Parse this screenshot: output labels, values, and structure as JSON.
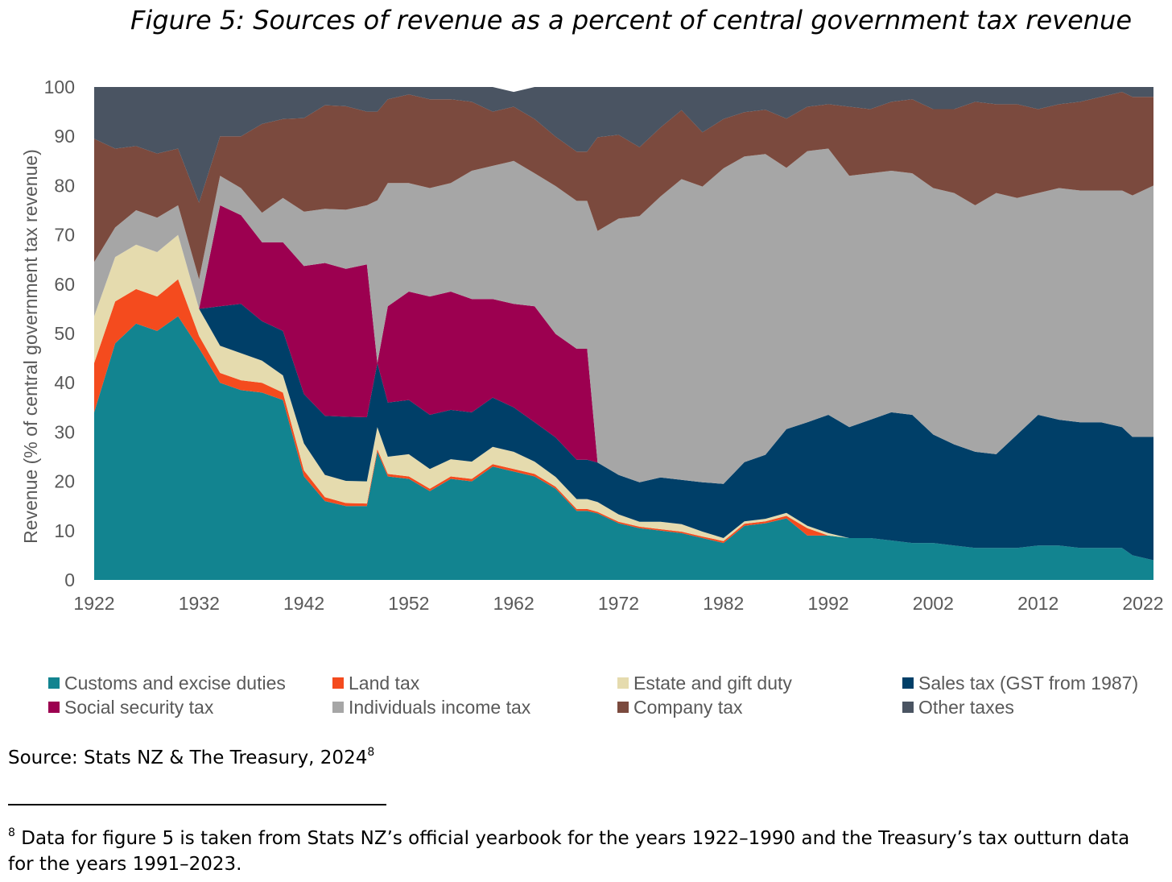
{
  "title": "Figure 5: Sources of revenue as a percent of central government tax revenue",
  "source": {
    "text": "Source: Stats NZ & The Treasury, 2024",
    "note_marker": "8"
  },
  "footnote": {
    "marker": "8",
    "text": " Data for figure 5 is taken from Stats NZ’s official yearbook for the years 1922–1990 and the Treasury’s tax outturn data for the years 1991–2023."
  },
  "chart_data": {
    "type": "area",
    "stacked": true,
    "title": "Figure 5: Sources of revenue as a percent of central government tax revenue",
    "xlabel": "",
    "ylabel": "Revenue (% of central government tax revenue)",
    "xlim": [
      1922,
      2023
    ],
    "ylim": [
      0,
      100
    ],
    "y_ticks": [
      0,
      10,
      20,
      30,
      40,
      50,
      60,
      70,
      80,
      90,
      100
    ],
    "x_ticks": [
      1922,
      1932,
      1942,
      1952,
      1962,
      1972,
      1982,
      1992,
      2002,
      2012,
      2022
    ],
    "grid": false,
    "legend_position": "bottom",
    "x": [
      1922,
      1924,
      1926,
      1928,
      1930,
      1932,
      1934,
      1936,
      1938,
      1940,
      1942,
      1944,
      1946,
      1948,
      1949,
      1950,
      1952,
      1954,
      1956,
      1958,
      1960,
      1962,
      1964,
      1966,
      1968,
      1969,
      1970,
      1972,
      1974,
      1976,
      1978,
      1980,
      1982,
      1984,
      1986,
      1988,
      1990,
      1992,
      1994,
      1996,
      1998,
      2000,
      2002,
      2004,
      2006,
      2008,
      2010,
      2012,
      2014,
      2016,
      2018,
      2020,
      2021,
      2023
    ],
    "series": [
      {
        "name": "Customs and excise duties",
        "color": "#128490",
        "values": [
          34,
          48,
          52,
          50.5,
          53.5,
          47,
          40,
          38.5,
          38,
          36.5,
          21,
          16,
          15,
          15,
          26,
          21,
          20.5,
          18,
          20.5,
          20,
          23,
          22,
          21,
          18.5,
          14,
          14,
          13.5,
          11.5,
          10.5,
          10,
          9.5,
          8.5,
          7.5,
          11,
          11.5,
          12.5,
          9,
          9,
          8.5,
          8.5,
          8,
          7.5,
          7.5,
          7,
          6.5,
          6.5,
          6.5,
          7,
          7,
          6.5,
          6.5,
          6.5,
          5,
          4
        ]
      },
      {
        "name": "Land tax",
        "color": "#f44b1e",
        "values": [
          10,
          8.5,
          7,
          7,
          7.5,
          2.5,
          2,
          2,
          2,
          1.5,
          1.2,
          0.8,
          0.6,
          0.5,
          0.5,
          0.5,
          0.5,
          0.5,
          0.5,
          0.5,
          0.5,
          0.5,
          0.5,
          0.4,
          0.4,
          0.4,
          0.3,
          0.3,
          0.3,
          0.3,
          0.3,
          0.3,
          0.4,
          0.4,
          0.4,
          0.5,
          1.5,
          0,
          0,
          0,
          0,
          0,
          0,
          0,
          0,
          0,
          0,
          0,
          0,
          0,
          0,
          0,
          0,
          0
        ]
      },
      {
        "name": "Estate and gift duty",
        "color": "#e5dbae",
        "values": [
          9.5,
          9,
          9,
          9,
          9,
          5.5,
          5.5,
          5.5,
          4.5,
          3.5,
          5.5,
          4.5,
          4.5,
          4.5,
          4.5,
          3.5,
          4.5,
          4,
          3.5,
          3.5,
          3.5,
          3.5,
          2.5,
          2,
          2,
          2,
          2,
          1.5,
          1,
          1.5,
          1.5,
          1,
          0.6,
          0.5,
          0.5,
          0.6,
          0.5,
          0.5,
          0,
          0,
          0,
          0,
          0,
          0,
          0,
          0,
          0,
          0,
          0,
          0,
          0,
          0,
          0,
          0
        ]
      },
      {
        "name": "Sales tax (GST from 1987)",
        "color": "#003f68",
        "values": [
          0,
          0,
          0,
          0,
          0,
          0,
          8,
          10,
          8,
          9,
          10,
          12,
          13,
          13,
          13,
          11,
          11,
          11,
          10,
          10,
          10,
          9,
          8,
          8,
          8,
          8,
          8,
          8,
          8,
          9,
          9,
          10,
          11,
          12,
          13,
          17,
          21,
          24,
          22.5,
          24,
          26,
          26,
          22,
          20.5,
          19.5,
          19,
          23,
          26.5,
          25.5,
          25.5,
          25.5,
          24.5,
          24,
          25
        ]
      },
      {
        "name": "Social security tax",
        "color": "#9c0050",
        "values": [
          0,
          0,
          0,
          0,
          0,
          0,
          20.5,
          18,
          16,
          18,
          26,
          31,
          30,
          31,
          0,
          19.5,
          22,
          24,
          24,
          23,
          20,
          21,
          23.5,
          21,
          22.5,
          22.5,
          0,
          0,
          0,
          0,
          0,
          0,
          0,
          0,
          0,
          0,
          0,
          0,
          0,
          0,
          0,
          0,
          0,
          0,
          0,
          0,
          0,
          0,
          0,
          0,
          0,
          0,
          0,
          0
        ]
      },
      {
        "name": "Individuals income tax",
        "color": "#a6a6a6",
        "values": [
          11,
          6,
          7,
          7,
          6,
          6,
          6,
          5.5,
          6,
          9,
          11,
          11,
          12,
          12,
          33,
          25,
          22,
          22,
          22,
          26,
          27,
          29,
          27,
          30,
          30,
          30,
          47,
          52,
          54,
          57,
          61,
          60,
          64,
          62,
          61,
          53,
          55,
          54,
          51,
          50,
          49,
          49,
          50,
          51,
          50,
          53,
          48,
          45,
          47,
          47,
          47,
          48,
          49,
          51
        ]
      },
      {
        "name": "Company tax",
        "color": "#7b4a3e",
        "values": [
          25,
          16,
          13,
          13,
          11.5,
          15.5,
          8,
          10.5,
          18,
          16,
          19,
          21,
          21,
          19,
          18,
          17,
          18,
          18,
          17,
          14,
          11,
          11,
          11,
          10,
          10,
          10,
          19,
          17,
          14,
          14,
          14,
          11,
          10,
          9,
          9,
          10,
          9,
          9,
          14,
          13,
          14,
          15,
          16,
          17,
          21,
          18,
          19,
          17,
          17,
          18,
          19,
          20,
          20,
          18
        ]
      },
      {
        "name": "Other taxes",
        "color": "#4a5462",
        "values": [
          10.5,
          12.5,
          12,
          13.5,
          12.5,
          23.5,
          10,
          10,
          7.5,
          6.5,
          7.3,
          3.7,
          3.9,
          5,
          5,
          2.5,
          1.5,
          2.5,
          2.5,
          3,
          5,
          3,
          6.5,
          10.1,
          13.1,
          13.1,
          10.2,
          9.7,
          16.2,
          8.2,
          4.7,
          9.2,
          6.5,
          5.1,
          4.6,
          6.4,
          4,
          3.5,
          4,
          4.5,
          3,
          2.5,
          4.5,
          4.5,
          3,
          3.5,
          3.5,
          4.5,
          3.5,
          3,
          2,
          1,
          2,
          2
        ]
      }
    ]
  },
  "legend": [
    {
      "label": "Customs and excise duties",
      "color": "#128490"
    },
    {
      "label": "Land tax",
      "color": "#f44b1e"
    },
    {
      "label": "Estate and gift duty",
      "color": "#e5dbae"
    },
    {
      "label": "Sales tax (GST from 1987)",
      "color": "#003f68"
    },
    {
      "label": "Social security tax",
      "color": "#9c0050"
    },
    {
      "label": "Individuals income tax",
      "color": "#a6a6a6"
    },
    {
      "label": "Company tax",
      "color": "#7b4a3e"
    },
    {
      "label": "Other taxes",
      "color": "#4a5462"
    }
  ]
}
